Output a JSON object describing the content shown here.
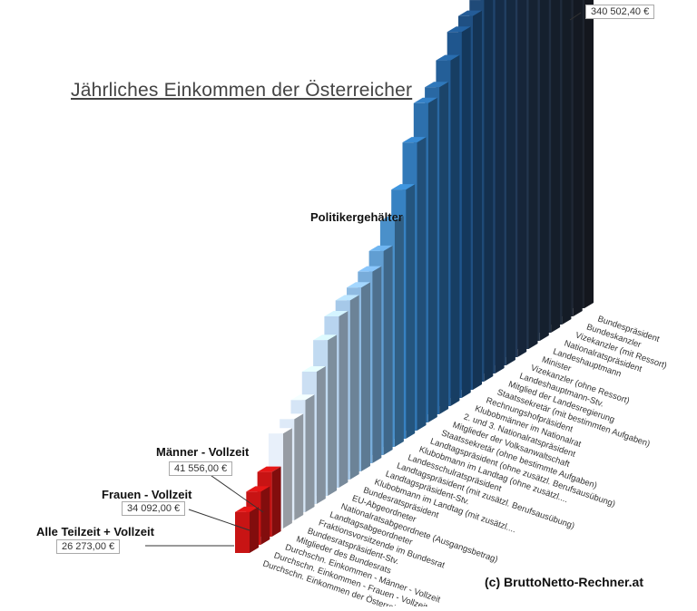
{
  "title": "Jährliches Einkommen der Österreicher",
  "section_label": "Politikergehälter",
  "credit": "(c) BruttoNetto-Rechner.at",
  "callouts": {
    "maenner": {
      "label": "Männer - Vollzeit",
      "value": "41 556,00 €"
    },
    "frauen": {
      "label": "Frauen - Vollzeit",
      "value": "34 092,00 €"
    },
    "alle": {
      "label": "Alle Teilzeit + Vollzeit",
      "value": "26 273,00 €"
    },
    "top": {
      "value": "340 502,40 €"
    }
  },
  "chart_data": {
    "type": "bar",
    "title": "Jährliches Einkommen der Österreicher",
    "categories": [
      "Durchschn. Einkommen der Österreicher",
      "Durchschn. Einkommen - Frauen - Vollzeit",
      "Durchschn. Einkommen - Männer - Vollzeit",
      "Mitglieder des Bundesrats",
      "Bundesratspräsident-Stv.",
      "Fraktionsvorsitzende im Bundesrat",
      "Landtagsabgeordneter",
      "Nationalratsabgeordnete (Ausgangsbetrag)",
      "EU-Abgeordneter",
      "Bundesratspräsident",
      "Klubobmann im Landtag (mit zusätzl....",
      "Landtagspräsident-Stv.",
      "Landtagspräsident (mit zusätzl. Berufsausübung)",
      "Landesschulratspräsident",
      "Klubobmann im Landtag (ohne zusätzl....",
      "Landtagspräsident (ohne zusätzl. Berufsausübung)",
      "Staatssekretär (ohne bestimmte Aufgaben)",
      "Mitglieder der Volksanwaltschaft",
      "2. und 3. Nationalratspräsident",
      "Klubobmänner im Nationalrat",
      "Rechnungshofpräsident",
      "Staatssekretär (mit bestimmten Aufgaben)",
      "Mitglied der Landesregierung",
      "Landeshauptmann-Stv.",
      "Vizekanzler (ohne Ressort)",
      "Minister",
      "Landeshauptmann",
      "Nationalratspräsident",
      "Vizekanzler (mit Ressort)",
      "Bundeskanzler",
      "Bundespräsident"
    ],
    "values": [
      26273,
      34092,
      41556,
      61000,
      65000,
      72000,
      85000,
      100000,
      110000,
      115000,
      118000,
      123000,
      131000,
      145000,
      160000,
      185000,
      205000,
      210000,
      222000,
      235000,
      240000,
      245000,
      250000,
      255000,
      262000,
      275000,
      283000,
      295000,
      305000,
      325000,
      340502.4
    ],
    "highlight_colors": {
      "citizen": "#c81414",
      "light": "#bcd6ee",
      "mid": "#3b84c4",
      "dark": "#24466f",
      "darkest": "#1f2a36"
    }
  }
}
